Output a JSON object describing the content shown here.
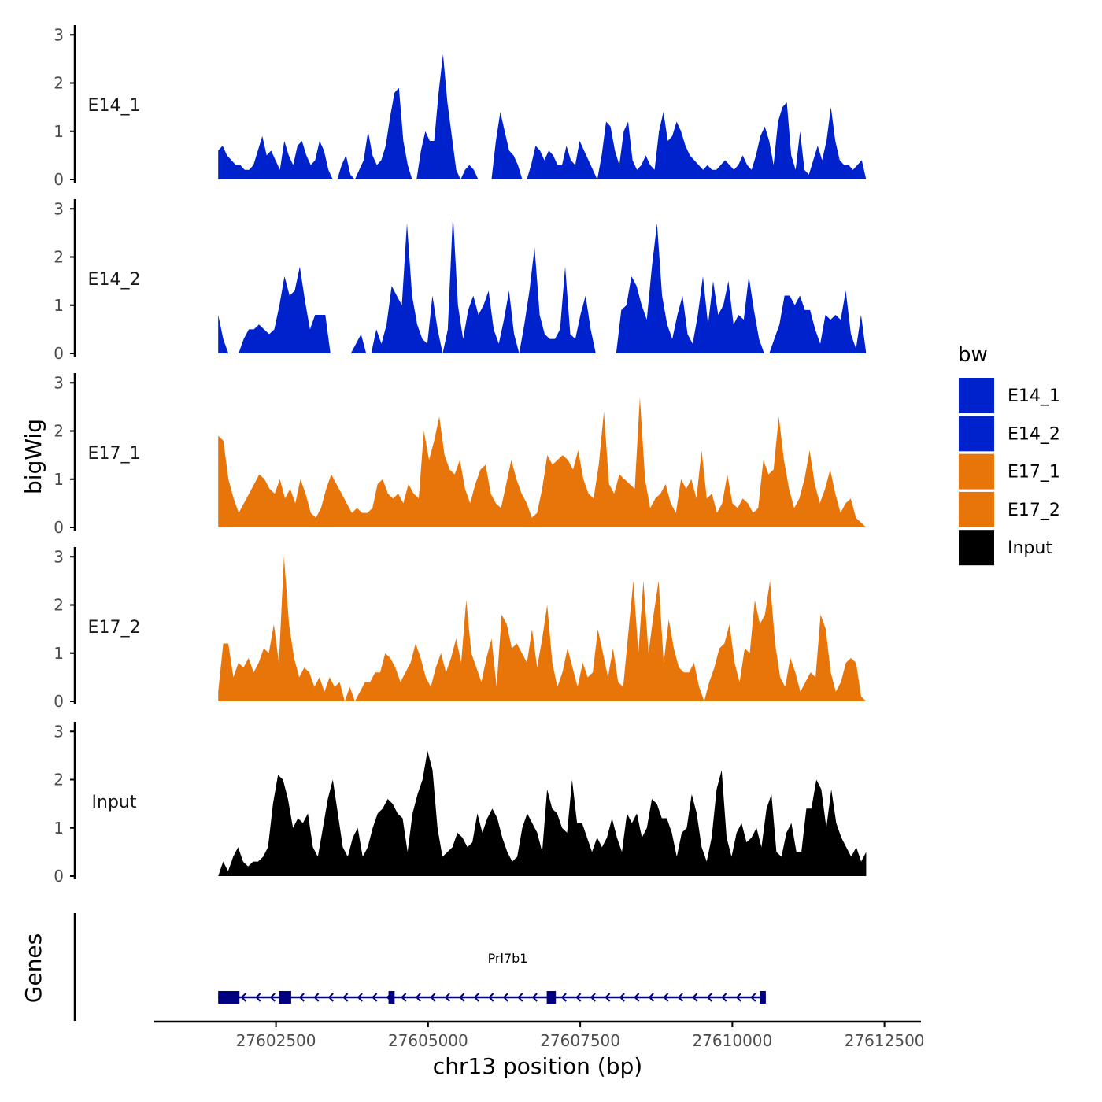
{
  "chart_data": {
    "type": "area",
    "xlabel": "chr13 position (bp)",
    "ylabel": "bigWig",
    "genes_label": "Genes",
    "xlim": [
      27600500,
      27613100
    ],
    "xticks": [
      27602500,
      27605000,
      27607500,
      27610000,
      27612500
    ],
    "xtick_labels": [
      "27602500",
      "27605000",
      "27607500",
      "27610000",
      "27612500"
    ],
    "ylim": [
      0,
      3.2
    ],
    "yticks": [
      0,
      1,
      2,
      3
    ],
    "ytick_labels": [
      "0",
      "1",
      "2",
      "3"
    ],
    "legend_title": "bw",
    "legend": [
      {
        "name": "E14_1",
        "color": "#0022cc"
      },
      {
        "name": "E14_2",
        "color": "#0022cc"
      },
      {
        "name": "E17_1",
        "color": "#e8750a"
      },
      {
        "name": "E17_2",
        "color": "#e8750a"
      },
      {
        "name": "Input",
        "color": "#000000"
      }
    ],
    "series": [
      {
        "name": "E14_1",
        "color": "#0022cc",
        "x_start": 27601550,
        "x_end": 27612200,
        "values": [
          0.6,
          0.7,
          0.5,
          0.4,
          0.3,
          0.3,
          0.2,
          0.2,
          0.3,
          0.6,
          0.9,
          0.5,
          0.6,
          0.4,
          0.2,
          0.8,
          0.5,
          0.3,
          0.7,
          0.8,
          0.5,
          0.3,
          0.4,
          0.8,
          0.6,
          0.2,
          0,
          0,
          0.3,
          0.5,
          0.1,
          0,
          0.2,
          0.4,
          1.0,
          0.5,
          0.3,
          0.4,
          0.7,
          1.3,
          1.8,
          1.9,
          0.8,
          0.3,
          0,
          0,
          0.6,
          1.0,
          0.8,
          0.8,
          1.8,
          2.6,
          1.6,
          0.9,
          0.2,
          0,
          0.2,
          0.3,
          0.2,
          0,
          0,
          0,
          0,
          0.8,
          1.4,
          1.0,
          0.6,
          0.5,
          0.3,
          0,
          0,
          0.3,
          0.7,
          0.6,
          0.4,
          0.6,
          0.5,
          0.3,
          0.3,
          0.7,
          0.4,
          0.3,
          0.8,
          0.6,
          0.4,
          0.2,
          0,
          0.5,
          1.2,
          1.1,
          0.6,
          0.3,
          1.0,
          1.2,
          0.4,
          0.2,
          0.3,
          0.5,
          0.3,
          0.2,
          1.0,
          1.4,
          0.8,
          0.9,
          1.2,
          1.0,
          0.7,
          0.5,
          0.4,
          0.3,
          0.2,
          0.3,
          0.2,
          0.2,
          0.3,
          0.4,
          0.3,
          0.2,
          0.3,
          0.5,
          0.3,
          0.2,
          0.5,
          0.9,
          1.1,
          0.8,
          0.3,
          1.2,
          1.5,
          1.6,
          0.5,
          0.2,
          1.0,
          0.2,
          0.1,
          0.4,
          0.7,
          0.4,
          0.8,
          1.5,
          0.8,
          0.4,
          0.3,
          0.3,
          0.2,
          0.3,
          0.4,
          0
        ]
      },
      {
        "name": "E14_2",
        "color": "#0022cc",
        "x_start": 27601550,
        "x_end": 27612200,
        "values": [
          0.8,
          0.3,
          0,
          0,
          0,
          0.3,
          0.5,
          0.5,
          0.6,
          0.5,
          0.4,
          0.5,
          1.0,
          1.6,
          1.2,
          1.3,
          1.8,
          1.1,
          0.5,
          0.8,
          0.8,
          0.8,
          0,
          0,
          0,
          0,
          0,
          0.2,
          0.4,
          0,
          0,
          0.5,
          0.2,
          0.6,
          1.4,
          1.2,
          1.0,
          2.7,
          1.2,
          0.6,
          0.3,
          0.2,
          1.2,
          0.5,
          0,
          0.5,
          2.9,
          1.0,
          0.3,
          0.9,
          1.2,
          0.8,
          1.0,
          1.3,
          0.5,
          0.2,
          0.7,
          1.3,
          0.4,
          0,
          0.6,
          1.3,
          2.2,
          0.8,
          0.4,
          0.3,
          0.3,
          0.5,
          1.8,
          0.4,
          0.3,
          0.8,
          1.2,
          0.5,
          0,
          0,
          0,
          0,
          0,
          0.9,
          1.0,
          1.6,
          1.4,
          1.0,
          0.7,
          1.8,
          2.7,
          1.2,
          0.6,
          0.3,
          0.8,
          1.2,
          0.4,
          0.2,
          0.8,
          1.6,
          0.6,
          1.5,
          0.8,
          1.0,
          1.5,
          0.6,
          0.8,
          0.7,
          1.6,
          0.9,
          0.3,
          0,
          0,
          0.3,
          0.6,
          1.2,
          1.2,
          1.0,
          1.2,
          0.9,
          0.9,
          0.5,
          0.2,
          0.8,
          0.7,
          0.8,
          0.7,
          1.3,
          0.4,
          0.1,
          0.8,
          0
        ]
      },
      {
        "name": "E17_1",
        "color": "#e8750a",
        "x_start": 27601550,
        "x_end": 27612200,
        "values": [
          1.9,
          1.8,
          1.0,
          0.6,
          0.3,
          0.5,
          0.7,
          0.9,
          1.1,
          1.0,
          0.8,
          0.7,
          1.0,
          0.6,
          0.8,
          0.5,
          1.0,
          0.7,
          0.3,
          0.2,
          0.4,
          0.8,
          1.1,
          0.9,
          0.7,
          0.5,
          0.3,
          0.4,
          0.3,
          0.3,
          0.4,
          0.9,
          1.0,
          0.7,
          0.6,
          0.7,
          0.5,
          0.9,
          0.7,
          0.6,
          2.0,
          1.4,
          1.8,
          2.3,
          1.5,
          1.2,
          1.1,
          1.4,
          0.8,
          0.5,
          0.9,
          1.2,
          1.3,
          0.7,
          0.5,
          0.4,
          0.9,
          1.4,
          1.0,
          0.7,
          0.5,
          0.2,
          0.3,
          0.8,
          1.5,
          1.3,
          1.4,
          1.5,
          1.4,
          1.2,
          1.6,
          1.0,
          0.7,
          0.6,
          1.3,
          2.4,
          0.9,
          0.7,
          1.1,
          1.0,
          0.9,
          0.8,
          2.7,
          1.0,
          0.4,
          0.6,
          0.7,
          0.9,
          0.5,
          0.3,
          1.0,
          0.8,
          1.0,
          0.6,
          1.6,
          0.6,
          0.7,
          0.3,
          0.5,
          1.1,
          0.5,
          0.4,
          0.6,
          0.5,
          0.3,
          0.4,
          1.4,
          1.1,
          1.2,
          2.3,
          1.4,
          0.8,
          0.4,
          0.6,
          1.0,
          1.6,
          0.9,
          0.5,
          0.8,
          1.2,
          0.7,
          0.3,
          0.5,
          0.6,
          0.2,
          0.1,
          0
        ]
      },
      {
        "name": "E17_2",
        "color": "#e8750a",
        "x_start": 27601550,
        "x_end": 27612200,
        "values": [
          0.2,
          1.2,
          1.2,
          0.5,
          0.8,
          0.7,
          0.9,
          0.6,
          0.8,
          1.1,
          1.0,
          1.6,
          0.8,
          3.0,
          1.6,
          0.9,
          0.5,
          0.7,
          0.6,
          0.3,
          0.5,
          0.2,
          0.5,
          0.3,
          0.4,
          0,
          0.3,
          0,
          0.2,
          0.4,
          0.4,
          0.6,
          0.6,
          1.0,
          0.9,
          0.7,
          0.4,
          0.6,
          0.8,
          1.2,
          0.9,
          0.5,
          0.3,
          0.7,
          1.0,
          0.6,
          0.9,
          1.3,
          0.8,
          2.1,
          1.0,
          0.7,
          0.4,
          0.9,
          1.3,
          0.3,
          1.8,
          1.6,
          1.1,
          1.2,
          1.0,
          0.8,
          1.5,
          0.7,
          1.3,
          2.0,
          0.8,
          0.3,
          0.6,
          1.1,
          0.7,
          0.3,
          0.8,
          0.5,
          0.6,
          1.5,
          1.0,
          0.5,
          1.1,
          0.4,
          0.3,
          1.4,
          2.5,
          1.0,
          2.5,
          1.0,
          1.8,
          2.5,
          0.8,
          1.7,
          1.1,
          0.7,
          0.6,
          0.6,
          0.8,
          0.3,
          0,
          0.4,
          0.7,
          1.1,
          1.2,
          1.6,
          0.8,
          0.4,
          1.1,
          1.0,
          2.1,
          1.6,
          1.8,
          2.5,
          1.2,
          0.5,
          0.3,
          0.9,
          0.6,
          0.2,
          0.4,
          0.6,
          0.5,
          1.8,
          1.5,
          0.6,
          0.2,
          0.4,
          0.8,
          0.9,
          0.8,
          0.1,
          0
        ]
      },
      {
        "name": "Input",
        "color": "#000000",
        "x_start": 27601550,
        "x_end": 27612200,
        "values": [
          0,
          0.3,
          0.1,
          0.4,
          0.6,
          0.3,
          0.2,
          0.3,
          0.3,
          0.4,
          0.6,
          1.5,
          2.1,
          2.0,
          1.6,
          1.0,
          1.2,
          1.1,
          1.3,
          0.6,
          0.4,
          1.0,
          1.6,
          2.0,
          1.3,
          0.6,
          0.4,
          0.8,
          1.0,
          0.4,
          0.6,
          1.0,
          1.3,
          1.4,
          1.6,
          1.5,
          1.3,
          1.2,
          0.5,
          1.3,
          1.7,
          2.0,
          2.6,
          2.2,
          1.0,
          0.4,
          0.5,
          0.6,
          0.9,
          0.8,
          0.6,
          0.7,
          1.3,
          0.9,
          1.2,
          1.4,
          1.2,
          0.8,
          0.5,
          0.3,
          0.4,
          1.0,
          1.3,
          1.1,
          0.9,
          0.5,
          1.8,
          1.4,
          1.3,
          1.0,
          0.9,
          2.0,
          1.1,
          1.1,
          0.8,
          0.5,
          0.8,
          0.6,
          0.8,
          1.2,
          0.8,
          0.5,
          1.3,
          1.1,
          1.3,
          0.8,
          1.0,
          1.6,
          1.5,
          1.2,
          1.2,
          0.9,
          0.4,
          0.9,
          1.0,
          1.7,
          1.3,
          0.6,
          0.3,
          0.8,
          1.8,
          2.2,
          0.8,
          0.4,
          0.9,
          1.1,
          0.7,
          0.8,
          1.0,
          0.6,
          1.4,
          1.7,
          0.5,
          0.4,
          0.9,
          1.1,
          0.5,
          0.5,
          1.4,
          1.4,
          2.0,
          1.8,
          1.0,
          1.8,
          1.1,
          0.8,
          0.6,
          0.4,
          0.6,
          0.3,
          0.5
        ]
      }
    ],
    "gene": {
      "name": "Prl7b1",
      "strand": "-",
      "start": 27601550,
      "end": 27610550,
      "exons": [
        [
          27601550,
          27601900
        ],
        [
          27602550,
          27602750
        ],
        [
          27604350,
          27604450
        ],
        [
          27606950,
          27607100
        ],
        [
          27610450,
          27610550
        ]
      ],
      "color": "#000080"
    }
  }
}
